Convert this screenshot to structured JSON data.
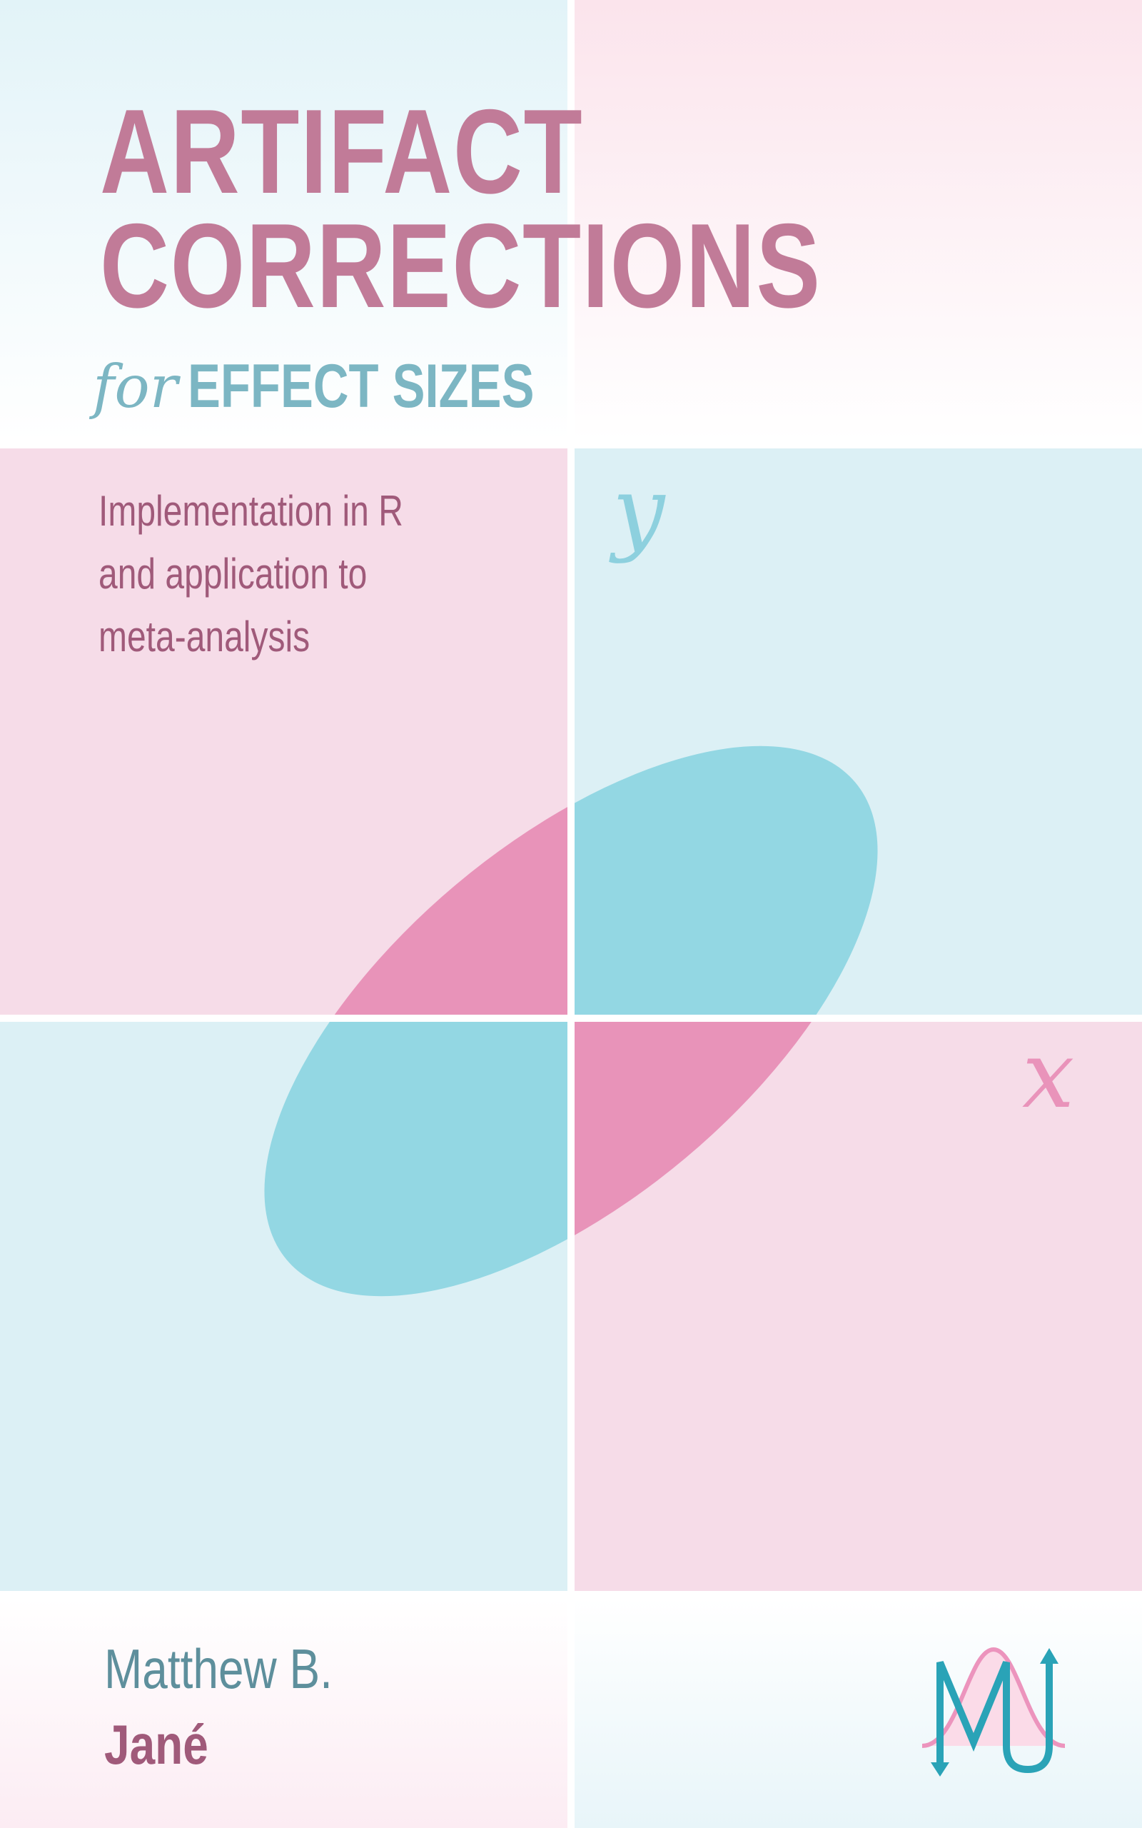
{
  "book": {
    "title_line1": "ARTIFACT",
    "title_line2": "CORRECTIONS",
    "title_for": "for",
    "title_effect_sizes": "EFFECT SIZES",
    "tagline": [
      "Implementation in R",
      "and application to",
      "meta-analysis"
    ],
    "axis_y_label": "y",
    "axis_x_label": "x",
    "author_first": "Matthew B.",
    "author_last": "Jané",
    "logo_letters": "MJ"
  },
  "colors": {
    "pink_text": "#c17b98",
    "teal_text": "#7cb6c3",
    "pink_panel": "#f6dce8",
    "blue_panel": "#dcf0f5",
    "ellipse_blue": "#93d7e3",
    "ellipse_pink": "#e893b9",
    "logo_teal": "#2aa3b7",
    "logo_pink": "#ec94bd"
  }
}
